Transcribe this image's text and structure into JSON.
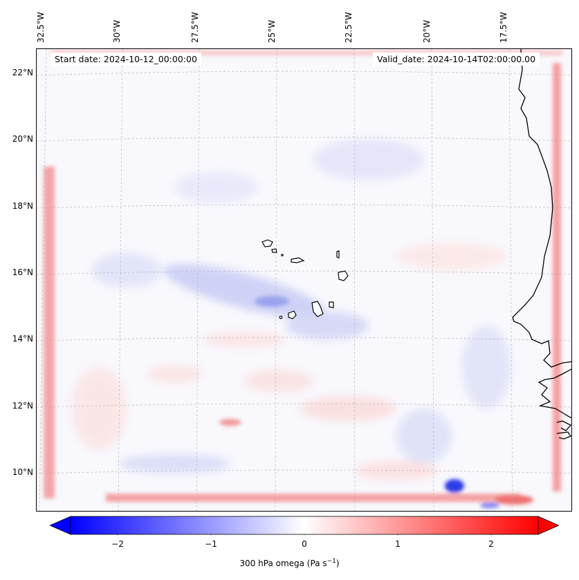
{
  "map": {
    "start_date_text": "Start date: 2024-10-12_00:00:00",
    "valid_date_text": "Valid_date: 2024-10-14T02:00:00.00",
    "lon_labels": [
      "32.5°W",
      "30°W",
      "27.5°W",
      "25°W",
      "22.5°W",
      "20°W",
      "17.5°W"
    ],
    "lat_labels": [
      "22°N",
      "20°N",
      "18°N",
      "16°N",
      "14°N",
      "12°N",
      "10°N"
    ],
    "coastline_color": "#000000",
    "gridline_color": "#b0b0b0"
  },
  "colorbar": {
    "tick_labels": [
      "−2",
      "−1",
      "0",
      "1",
      "2"
    ],
    "tick_values": [
      -2,
      -1,
      0,
      1,
      2
    ],
    "range": [
      -2.5,
      2.5
    ],
    "title_prefix": "300 hPa omega (Pa s",
    "title_exponent": "−1",
    "title_suffix": ")",
    "colormap": "bwr",
    "low_color": "#0000ff",
    "mid_color": "#ffffff",
    "high_color": "#ff0000",
    "extend": "both"
  }
}
